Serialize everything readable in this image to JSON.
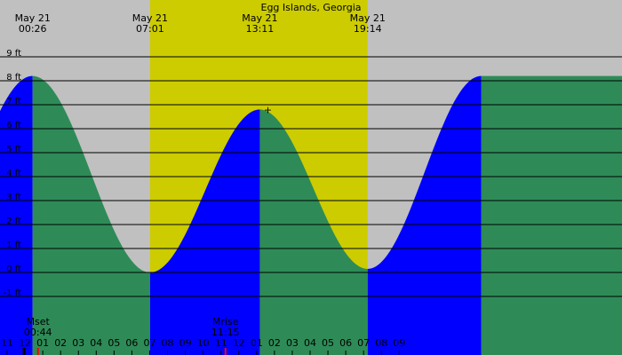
{
  "chart_data": {
    "type": "area",
    "title": "Egg Islands, Georgia",
    "colors": {
      "night_bg": "#c0c0c0",
      "day_bg": "#cccc00",
      "rising": "#0000ff",
      "falling": "#2e8b57",
      "grid": "#000000",
      "moon_marker": "#ff0000"
    },
    "ylim": [
      -2,
      9
    ],
    "y_ticks": [
      {
        "value": 9,
        "label": "9 ft"
      },
      {
        "value": 8,
        "label": "8 ft"
      },
      {
        "value": 7,
        "label": "7 ft"
      },
      {
        "value": 6,
        "label": "6 ft"
      },
      {
        "value": 5,
        "label": "5 ft"
      },
      {
        "value": 4,
        "label": "4 ft"
      },
      {
        "value": 3,
        "label": "3 ft"
      },
      {
        "value": 2,
        "label": "2 ft"
      },
      {
        "value": 1,
        "label": "1 ft"
      },
      {
        "value": 0,
        "label": "0 ft"
      },
      {
        "value": -1,
        "label": "-1 ft"
      }
    ],
    "xlim": [
      -1.4,
      33.5
    ],
    "x_tick_labels": [
      "11",
      "12",
      "01",
      "02",
      "03",
      "04",
      "05",
      "06",
      "07",
      "08",
      "09",
      "10",
      "11",
      "12",
      "01",
      "02",
      "03",
      "04",
      "05",
      "06",
      "07",
      "08",
      "09"
    ],
    "x_tick_hours": [
      -1,
      0,
      1,
      2,
      3,
      4,
      5,
      6,
      7,
      8,
      9,
      10,
      11,
      12,
      13,
      14,
      15,
      16,
      17,
      18,
      19,
      20,
      21
    ],
    "daylight": {
      "start_hour": 7.02,
      "end_hour": 19.23
    },
    "top_labels": [
      {
        "date": "May 21",
        "time": "00:26",
        "hour": 0.43
      },
      {
        "date": "May 21",
        "time": "07:01",
        "hour": 7.02
      },
      {
        "date": "May 21",
        "time": "13:11",
        "hour": 13.18
      },
      {
        "date": "May 21",
        "time": "19:14",
        "hour": 19.23
      }
    ],
    "tide_extremes": [
      {
        "hour": 0.43,
        "height": 8.2
      },
      {
        "hour": 7.02,
        "height": 0.0
      },
      {
        "hour": 13.18,
        "height": 6.8
      },
      {
        "hour": 19.23,
        "height": 0.15
      },
      {
        "hour": 25.6,
        "height": 8.2
      }
    ],
    "moon_events": [
      {
        "label": "Mset",
        "time": "00:44",
        "hour": 0.73
      },
      {
        "label": "Mrise",
        "time": "11:15",
        "hour": 11.25
      }
    ],
    "sun_markers": [
      {
        "hour": -0.05
      }
    ]
  }
}
